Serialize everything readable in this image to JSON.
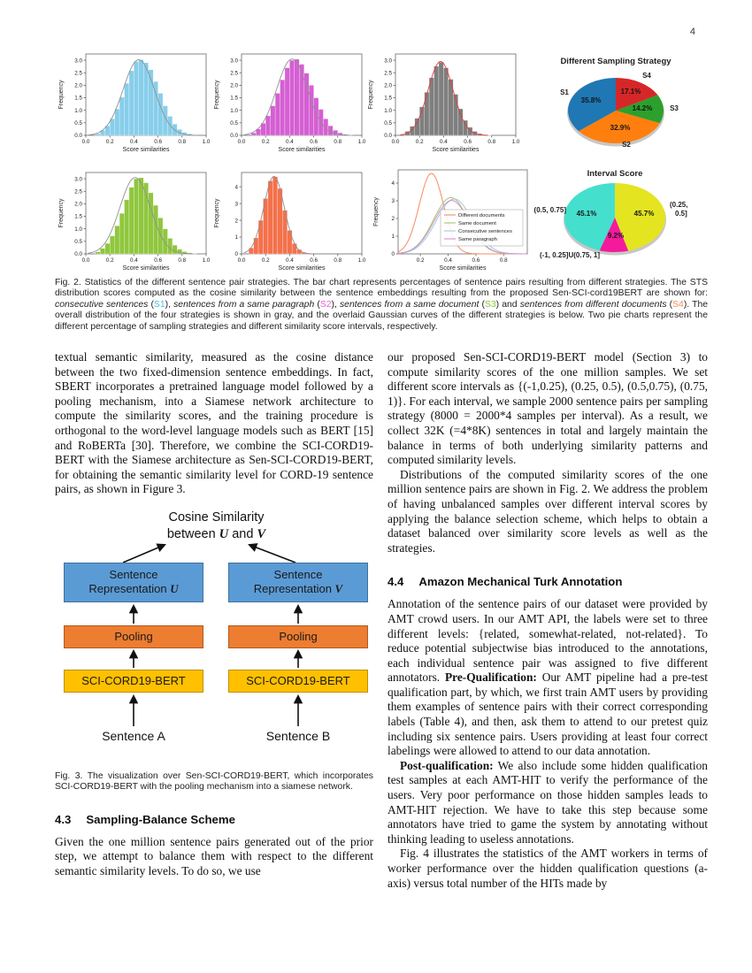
{
  "page": {
    "number": "4"
  },
  "fig2": {
    "caption_runs": [
      {
        "t": "Fig. 2. Statistics of the different sentence pair strategies. The bar chart represents percentages of sentence pairs resulting from different strategies. The STS distribution scores computed as the cosine similarity between the sentence embeddings resulting from the proposed Sen-SCI-cord19BERT are shown for: "
      },
      {
        "t": "consecutive sentences",
        "i": true
      },
      {
        "t": " ("
      },
      {
        "t": "S1",
        "c": "#45C1E8"
      },
      {
        "t": "), "
      },
      {
        "t": "sentences from a same paragraph",
        "i": true
      },
      {
        "t": " ("
      },
      {
        "t": "S2",
        "c": "#E860D8"
      },
      {
        "t": "), "
      },
      {
        "t": "sentences from a same document",
        "i": true
      },
      {
        "t": " ("
      },
      {
        "t": "S3",
        "c": "#8DC63F"
      },
      {
        "t": ") and "
      },
      {
        "t": "sentences from different documents",
        "i": true
      },
      {
        "t": " ("
      },
      {
        "t": "S4",
        "c": "#F5915B"
      },
      {
        "t": "). The overall distribution of the four strategies is shown in gray, and the overlaid Gaussian curves of the different strategies is below. Two pie charts represent the different percentage of sampling strategies and different similarity score intervals, respectively."
      }
    ]
  },
  "fig3": {
    "title_line1": "Cosine Similarity",
    "title_line2_runs": [
      {
        "t": "between "
      },
      {
        "t": "U",
        "b": true,
        "i": true,
        "serif": true
      },
      {
        "t": " and "
      },
      {
        "t": "V",
        "b": true,
        "i": true,
        "serif": true
      }
    ],
    "box_u_line1": "Sentence",
    "box_u_line2_runs": [
      {
        "t": "Representation "
      },
      {
        "t": "U",
        "b": true,
        "i": true,
        "serif": true
      }
    ],
    "box_v_line1": "Sentence",
    "box_v_line2_runs": [
      {
        "t": "Representation "
      },
      {
        "t": "V",
        "b": true,
        "i": true,
        "serif": true
      }
    ],
    "pooling_left": "Pooling",
    "pooling_right": "Pooling",
    "bert_left": "SCI-CORD19-BERT",
    "bert_right": "SCI-CORD19-BERT",
    "sentence_a": "Sentence A",
    "sentence_b": "Sentence B",
    "caption": "Fig. 3. The visualization over Sen-SCI-CORD19-BERT, which incorporates SCI-CORD19-BERT with the pooling mechanism into a siamese network."
  },
  "left_column": {
    "para1": "textual semantic similarity, measured as the cosine distance between the two fixed-dimension sentence embeddings. In fact, SBERT incorporates a pretrained language model followed by a pooling mechanism, into a Siamese network architecture to compute the similarity scores, and the training procedure is orthogonal to the word-level language models such as BERT [15] and RoBERTa [30]. Therefore, we combine the SCI-CORD19-BERT with the Siamese architecture as Sen-SCI-CORD19-BERT, for obtaining the semantic similarity level for CORD-19 sentence pairs, as shown in Figure 3.",
    "section43_number": "4.3",
    "section43_title": "Sampling-Balance Scheme",
    "para2": "Given the one million sentence pairs generated out of the prior step, we attempt to balance them with respect to the different semantic similarity levels. To do so, we use"
  },
  "right_column": {
    "para1": "our proposed Sen-SCI-CORD19-BERT model (Section 3) to compute similarity scores of the one million samples. We set different score intervals as {(-1,0.25), (0.25, 0.5), (0.5,0.75), (0.75, 1)}. For each interval, we sample 2000 sentence pairs per sampling strategy (8000 = 2000*4 samples per interval). As a result, we collect 32K (=4*8K) sentences in total and largely maintain the balance in terms of both underlying similarity patterns and computed similarity levels.",
    "para2": "Distributions of the computed similarity scores of the one million sentence pairs are shown in Fig. 2. We address the problem of having unbalanced samples over different interval scores by applying the balance selection scheme, which helps to obtain a dataset balanced over similarity score levels as well as the strategies.",
    "section44_number": "4.4",
    "section44_title": "Amazon Mechanical Turk Annotation",
    "para3_runs": [
      {
        "t": "Annotation of the sentence pairs of our dataset were provided by AMT crowd users. In our AMT API, the labels were set to three different levels: {related, somewhat-related, not-related}. To reduce potential subjectwise bias introduced to the annotations, each individual sentence pair was assigned to five different annotators. "
      },
      {
        "t": "Pre-Qualification:",
        "b": true
      },
      {
        "t": " Our AMT pipeline had a pre-test qualification part, by which, we first train AMT users by providing them examples of sentence pairs with their correct corresponding labels (Table 4), and then, ask them to attend to our pretest quiz including six sentence pairs. Users providing at least four correct labelings were allowed to attend to our data annotation."
      }
    ],
    "para4_runs": [
      {
        "t": "Post-qualification:",
        "b": true
      },
      {
        "t": " We also include some hidden qualification test samples at each AMT-HIT to verify the performance of the users. Very poor performance on those hidden samples leads to AMT-HIT rejection. We have to take this step because some annotators have tried to game the system by annotating without thinking leading to useless annotations."
      }
    ],
    "para5": "Fig. 4 illustrates the statistics of the AMT workers in terms of worker performance over the hidden qualification questions (a-axis) versus total number of the HITs made by"
  },
  "chart_data": [
    {
      "id": "hist_s1_consecutive",
      "type": "bar",
      "xlabel": "Score similarities",
      "ylabel": "Frequency",
      "x_ticks": [
        0.0,
        0.2,
        0.4,
        0.6,
        0.8,
        1.0
      ],
      "y_ticks": [
        0.0,
        0.5,
        1.0,
        1.5,
        2.0,
        2.5,
        3.0
      ],
      "xlim": [
        0.0,
        1.0
      ],
      "ylim": [
        0,
        3.25
      ],
      "y_dec": 1,
      "bin_start": 0.08,
      "bin_width": 0.04,
      "color": "#87CEEB",
      "frequencies": [
        0.07,
        0.2,
        0.38,
        0.66,
        1.05,
        1.52,
        2.08,
        2.58,
        2.95,
        3.02,
        2.9,
        2.62,
        2.15,
        1.68,
        1.18,
        0.76,
        0.45,
        0.24,
        0.12,
        0.06,
        0.02
      ],
      "fit_curves": [
        {
          "mean": 0.44,
          "sd": 0.13,
          "amp": 3.02,
          "color": "#909090"
        }
      ]
    },
    {
      "id": "hist_s2_same_paragraph",
      "type": "bar",
      "xlabel": "Score similarities",
      "ylabel": "Frequency",
      "x_ticks": [
        0.0,
        0.2,
        0.4,
        0.6,
        0.8,
        1.0
      ],
      "y_ticks": [
        0.0,
        0.5,
        1.0,
        1.5,
        2.0,
        2.5,
        3.0
      ],
      "xlim": [
        0.0,
        1.0
      ],
      "ylim": [
        0,
        3.25
      ],
      "y_dec": 1,
      "bin_start": 0.08,
      "bin_width": 0.04,
      "color": "#D55FD3",
      "frequencies": [
        0.1,
        0.26,
        0.48,
        0.78,
        1.18,
        1.68,
        2.22,
        2.7,
        3.0,
        3.04,
        2.84,
        2.48,
        2.0,
        1.5,
        1.04,
        0.66,
        0.38,
        0.2,
        0.1,
        0.04,
        0.02
      ],
      "fit_curves": [
        {
          "mean": 0.42,
          "sd": 0.128,
          "amp": 3.05,
          "color": "#909090"
        }
      ]
    },
    {
      "id": "hist_overall",
      "type": "bar",
      "xlabel": "Score similarities",
      "ylabel": "Frequency",
      "x_ticks": [
        0.0,
        0.2,
        0.4,
        0.6,
        0.8,
        1.0
      ],
      "y_ticks": [
        0.0,
        0.5,
        1.0,
        1.5,
        2.0,
        2.5,
        3.0
      ],
      "xlim": [
        0.0,
        1.0
      ],
      "ylim": [
        0,
        3.25
      ],
      "y_dec": 1,
      "bin_start": 0.08,
      "bin_width": 0.04,
      "color": "#7F7F7F",
      "frequencies": [
        0.16,
        0.36,
        0.68,
        1.14,
        1.72,
        2.3,
        2.76,
        2.92,
        2.7,
        2.24,
        1.64,
        1.06,
        0.6,
        0.32,
        0.16,
        0.07,
        0.03,
        0.01
      ],
      "fit_curves": [
        {
          "mean": 0.375,
          "sd": 0.105,
          "amp": 2.95,
          "color": "#E23B3B"
        }
      ]
    },
    {
      "id": "hist_s3_same_document",
      "type": "bar",
      "xlabel": "Score similarities",
      "ylabel": "Frequency",
      "x_ticks": [
        0.0,
        0.2,
        0.4,
        0.6,
        0.8,
        1.0
      ],
      "y_ticks": [
        0.0,
        0.5,
        1.0,
        1.5,
        2.0,
        2.5,
        3.0
      ],
      "xlim": [
        0.0,
        1.0
      ],
      "ylim": [
        0,
        3.25
      ],
      "y_dec": 1,
      "bin_start": 0.08,
      "bin_width": 0.04,
      "color": "#8FC73E",
      "frequencies": [
        0.08,
        0.22,
        0.42,
        0.72,
        1.12,
        1.62,
        2.16,
        2.66,
        3.0,
        3.04,
        2.84,
        2.44,
        1.94,
        1.44,
        1.0,
        0.62,
        0.35,
        0.18,
        0.09,
        0.04,
        0.02
      ],
      "fit_curves": [
        {
          "mean": 0.41,
          "sd": 0.127,
          "amp": 3.05,
          "color": "#909090"
        }
      ]
    },
    {
      "id": "hist_s4_different_documents",
      "type": "bar",
      "xlabel": "Score similarities",
      "ylabel": "Frequency",
      "x_ticks": [
        0.0,
        0.2,
        0.4,
        0.6,
        0.8,
        1.0
      ],
      "y_ticks": [
        0,
        1,
        2,
        3,
        4
      ],
      "xlim": [
        0.0,
        1.0
      ],
      "ylim": [
        0,
        4.85
      ],
      "y_dec": 0,
      "bin_start": 0.06,
      "bin_width": 0.04,
      "color": "#F4714C",
      "frequencies": [
        0.35,
        0.95,
        2.0,
        3.3,
        4.35,
        4.6,
        3.9,
        2.6,
        1.4,
        0.62,
        0.26,
        0.1,
        0.04
      ],
      "fit_curves": [
        {
          "mean": 0.27,
          "sd": 0.085,
          "amp": 4.62,
          "color": "#909090"
        }
      ]
    },
    {
      "id": "gaussian_overlay",
      "type": "line",
      "xlabel": "Score similarities",
      "ylabel": "Frequency",
      "x_ticks": [
        0.2,
        0.4,
        0.6,
        0.8
      ],
      "y_ticks": [
        0,
        1,
        2,
        3,
        4
      ],
      "xlim": [
        0.04,
        0.97
      ],
      "ylim": [
        0,
        4.75
      ],
      "y_dec": 0,
      "series": [
        {
          "name": "Different documents",
          "mean": 0.28,
          "sd": 0.088,
          "amp": 4.55,
          "color": "#F88A60"
        },
        {
          "name": "Same document",
          "mean": 0.42,
          "sd": 0.125,
          "amp": 3.18,
          "color": "#A8C66C"
        },
        {
          "name": "Consecutive sentences",
          "mean": 0.445,
          "sd": 0.13,
          "amp": 3.1,
          "color": "#9FCBE1"
        },
        {
          "name": "Same paragraph",
          "mean": 0.425,
          "sd": 0.127,
          "amp": 3.02,
          "color": "#D48FD0"
        }
      ],
      "legend_box": {
        "x": 80,
        "y": 57,
        "w": 93,
        "h": 41
      }
    },
    {
      "id": "pie_sampling_strategy",
      "type": "pie",
      "title": "Different Sampling Strategy",
      "geom": {
        "cx": 84,
        "cy": 71,
        "rx": 54,
        "ry": 37,
        "title_y": 18
      },
      "slices": [
        {
          "name": "S4",
          "value": 17.1,
          "color": "#d62728",
          "pct": "17.1%",
          "pp": [
            101,
            52
          ],
          "np": [
            119,
            34
          ],
          "na": "middle"
        },
        {
          "name": "S3",
          "value": 14.2,
          "color": "#2ca02c",
          "pct": "14.2%",
          "pp": [
            114,
            71
          ],
          "np": [
            150,
            71
          ],
          "na": "middle"
        },
        {
          "name": "S2",
          "value": 32.9,
          "color": "#ff7f0e",
          "pct": "32.9%",
          "pp": [
            89,
            93
          ],
          "np": [
            96,
            112
          ],
          "na": "middle"
        },
        {
          "name": "S1",
          "value": 35.8,
          "color": "#1f77b4",
          "pct": "35.8%",
          "pp": [
            56,
            62
          ],
          "np": [
            26,
            53
          ],
          "na": "middle"
        }
      ]
    },
    {
      "id": "pie_interval_score",
      "type": "pie",
      "title": "Interval Score",
      "geom": {
        "cx": 93,
        "cy": 58,
        "rx": 57,
        "ry": 39,
        "title_y": 11
      },
      "slices": [
        {
          "name": "(0.25, 0.5]",
          "value": 45.7,
          "color": "#E4E421",
          "pct": "45.7%",
          "pp": [
            126,
            56
          ],
          "np": [
            155,
            46
          ],
          "na": "start",
          "nlines": [
            "(0.25,",
            "0.5]"
          ]
        },
        {
          "name": "(-1, 0.25]U(0.75, 1]",
          "value": 9.2,
          "color": "#F5199B",
          "pct": "9.2%",
          "pp": [
            94,
            81
          ],
          "np": [
            8,
            103
          ],
          "na": "start"
        },
        {
          "name": "(0.5, 0.75]",
          "value": 45.1,
          "color": "#45DFCE",
          "pct": "45.1%",
          "pp": [
            61,
            56
          ],
          "np": [
            38,
            52
          ],
          "na": "end"
        }
      ]
    }
  ]
}
